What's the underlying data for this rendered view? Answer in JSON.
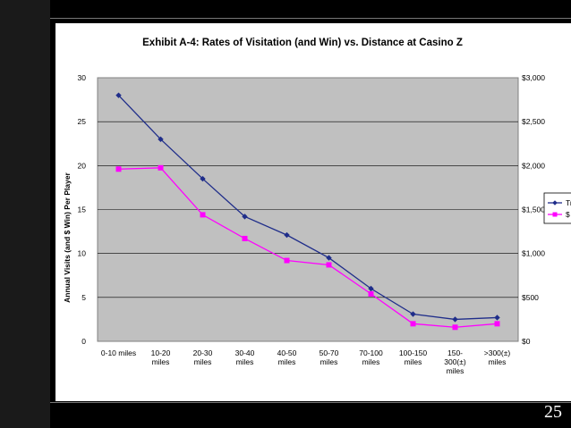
{
  "slide": {
    "page_number": "25"
  },
  "chart_data": {
    "type": "line",
    "title": "Exhibit A-4:  Rates of Visitation (and Win) vs. Distance at Casino Z",
    "xlabel": "",
    "ylabel": "Annual Visits (and $ Win) Per Player",
    "y2label": "",
    "categories": [
      [
        "0-10 miles"
      ],
      [
        "10-20",
        "miles"
      ],
      [
        "20-30",
        "miles"
      ],
      [
        "30-40",
        "miles"
      ],
      [
        "40-50",
        "miles"
      ],
      [
        "50-70",
        "miles"
      ],
      [
        "70-100",
        "miles"
      ],
      [
        "100-150",
        "miles"
      ],
      [
        "150-",
        "300(±)",
        "miles"
      ],
      [
        ">300(±)",
        "miles"
      ]
    ],
    "ylim": [
      0,
      30
    ],
    "y_ticks": [
      "0",
      "5",
      "10",
      "15",
      "20",
      "25",
      "30"
    ],
    "y2lim": [
      0,
      3000
    ],
    "y2_ticks": [
      "$0",
      "$500",
      "$1,000",
      "$1,500",
      "$2,000",
      "$2,500",
      "$3,000"
    ],
    "grid": "horizontal",
    "plot_background": "#c0c0c0",
    "legend_position": "right (clipped)",
    "series": [
      {
        "name": "Tr",
        "axis": "left",
        "color": "#1f2d8a",
        "marker": "diamond",
        "values": [
          28,
          23,
          18.5,
          14.2,
          12.1,
          9.5,
          6,
          3.1,
          2.5,
          2.7
        ]
      },
      {
        "name": "$",
        "axis": "right",
        "color": "#ff00ff",
        "marker": "square",
        "values": [
          1960,
          1975,
          1440,
          1170,
          920,
          870,
          540,
          200,
          160,
          200
        ]
      }
    ]
  }
}
